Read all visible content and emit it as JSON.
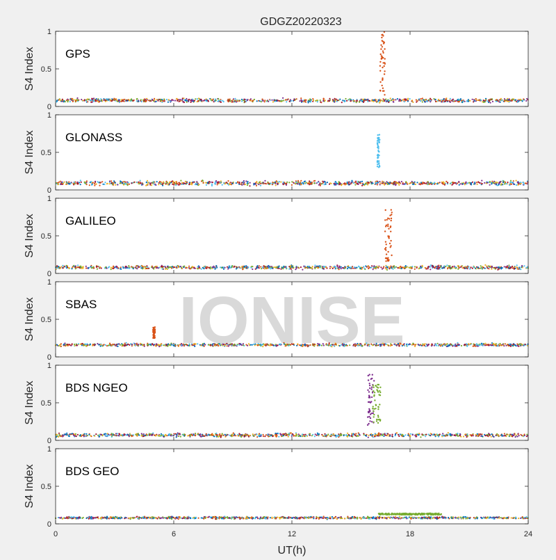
{
  "chart_data": {
    "type": "scatter",
    "title": "GDGZ20220323",
    "xlabel": "UT(h)",
    "ylabel": "S4 Index",
    "xlim": [
      0,
      24
    ],
    "ylim": [
      0,
      1
    ],
    "x_ticks": [
      0,
      6,
      12,
      18,
      24
    ],
    "y_ticks": [
      0,
      0.5,
      1
    ],
    "y_tick_labels": [
      "0",
      "0.5",
      "1"
    ],
    "grid": false,
    "watermark": "IONISE",
    "series_colors": [
      "#0072BD",
      "#D95319",
      "#EDB120",
      "#7E2F8E",
      "#77AC30",
      "#4DBEEE",
      "#A2142F"
    ],
    "panels": [
      {
        "label": "GPS",
        "baseline": {
          "x_range": [
            0,
            24
          ],
          "y_mean": 0.08,
          "y_spread": 0.05
        },
        "events": [
          {
            "color": "#D95319",
            "x_center": 16.6,
            "x_width": 0.25,
            "y_min": 0.15,
            "y_max": 1.0
          }
        ]
      },
      {
        "label": "GLONASS",
        "baseline": {
          "x_range": [
            0,
            24
          ],
          "y_mean": 0.09,
          "y_spread": 0.06
        },
        "events": [
          {
            "color": "#4DBEEE",
            "x_center": 16.4,
            "x_width": 0.12,
            "y_min": 0.3,
            "y_max": 0.75
          }
        ]
      },
      {
        "label": "GALILEO",
        "baseline": {
          "x_range": [
            0,
            24
          ],
          "y_mean": 0.08,
          "y_spread": 0.05
        },
        "events": [
          {
            "color": "#D95319",
            "x_center": 16.9,
            "x_width": 0.35,
            "y_min": 0.15,
            "y_max": 0.85
          }
        ]
      },
      {
        "label": "SBAS",
        "baseline": {
          "x_range": [
            0,
            24
          ],
          "y_mean": 0.16,
          "y_spread": 0.04
        },
        "events": [
          {
            "color": "#D95319",
            "x_center": 5.0,
            "x_width": 0.1,
            "y_min": 0.25,
            "y_max": 0.4
          }
        ]
      },
      {
        "label": "BDS NGEO",
        "baseline": {
          "x_range": [
            0,
            24
          ],
          "y_mean": 0.07,
          "y_spread": 0.05
        },
        "events": [
          {
            "color": "#7E2F8E",
            "x_center": 16.0,
            "x_width": 0.35,
            "y_min": 0.2,
            "y_max": 0.88
          },
          {
            "color": "#77AC30",
            "x_center": 16.3,
            "x_width": 0.4,
            "y_min": 0.2,
            "y_max": 0.75
          }
        ]
      },
      {
        "label": "BDS GEO",
        "baseline": {
          "x_range": [
            0,
            24
          ],
          "y_mean": 0.08,
          "y_spread": 0.03
        },
        "events": [
          {
            "color": "#77AC30",
            "x_center": 18.0,
            "x_width": 3.2,
            "y_min": 0.12,
            "y_max": 0.14
          }
        ]
      }
    ]
  }
}
